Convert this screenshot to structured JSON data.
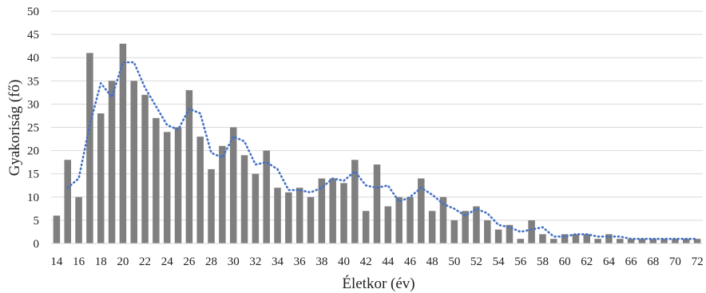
{
  "chart_data": {
    "type": "bar",
    "xlabel": "Életkor (év)",
    "ylabel": "Gyakoriság (fő)",
    "ylim": [
      0,
      50
    ],
    "yticks": [
      0,
      5,
      10,
      15,
      20,
      25,
      30,
      35,
      40,
      45,
      50
    ],
    "xtick_labels": [
      14,
      16,
      18,
      20,
      22,
      24,
      26,
      28,
      30,
      32,
      34,
      36,
      38,
      40,
      42,
      44,
      46,
      48,
      50,
      52,
      54,
      56,
      58,
      60,
      62,
      64,
      66,
      68,
      70,
      72
    ],
    "grid": "horizontal",
    "legend": "none",
    "bar_color": "#7f7f7f",
    "trend_color": "#4472c4",
    "trend_style": "dotted",
    "categories": [
      14,
      15,
      16,
      17,
      18,
      19,
      20,
      21,
      22,
      23,
      24,
      25,
      26,
      27,
      28,
      29,
      30,
      31,
      32,
      33,
      34,
      35,
      36,
      37,
      38,
      39,
      40,
      41,
      42,
      43,
      44,
      45,
      46,
      47,
      48,
      49,
      50,
      51,
      52,
      53,
      54,
      55,
      56,
      57,
      58,
      59,
      60,
      61,
      62,
      63,
      64,
      65,
      66,
      67,
      68,
      69,
      70,
      71,
      72
    ],
    "series": [
      {
        "type": "bar",
        "values": [
          6,
          18,
          10,
          41,
          28,
          35,
          43,
          35,
          32,
          27,
          24,
          25,
          33,
          23,
          16,
          21,
          25,
          19,
          15,
          20,
          12,
          11,
          12,
          10,
          14,
          14,
          13,
          18,
          7,
          17,
          8,
          10,
          10,
          14,
          7,
          10,
          5,
          7,
          8,
          5,
          3,
          4,
          1,
          5,
          2,
          1,
          2,
          2,
          2,
          1,
          2,
          1,
          1,
          1,
          1,
          1,
          1,
          1,
          1
        ]
      },
      {
        "type": "line",
        "x": [
          15,
          16,
          17,
          18,
          19,
          20,
          21,
          22,
          23,
          24,
          25,
          26,
          27,
          28,
          29,
          30,
          31,
          32,
          33,
          34,
          35,
          36,
          37,
          38,
          39,
          40,
          41,
          42,
          43,
          44,
          45,
          46,
          47,
          48,
          49,
          50,
          51,
          52,
          53,
          54,
          55,
          56,
          57,
          58,
          59,
          60,
          61,
          62,
          63,
          64,
          65,
          66,
          67,
          68,
          69,
          70,
          71,
          72
        ],
        "values": [
          12,
          14,
          25.5,
          34.5,
          31.5,
          39,
          39,
          33.5,
          29.5,
          25.5,
          24.5,
          29,
          28,
          19.5,
          18.5,
          23,
          22,
          17,
          17.5,
          16,
          11.5,
          11.5,
          11,
          12,
          14,
          13.5,
          15.5,
          12.5,
          12,
          12.5,
          9,
          10,
          12,
          10.5,
          8.5,
          7.5,
          6,
          7.5,
          6.5,
          4,
          3.5,
          2.5,
          3,
          3.5,
          1.5,
          1.5,
          2,
          2,
          1.5,
          1.5,
          1.5,
          1,
          1,
          1,
          1,
          1,
          1,
          1
        ]
      }
    ]
  }
}
